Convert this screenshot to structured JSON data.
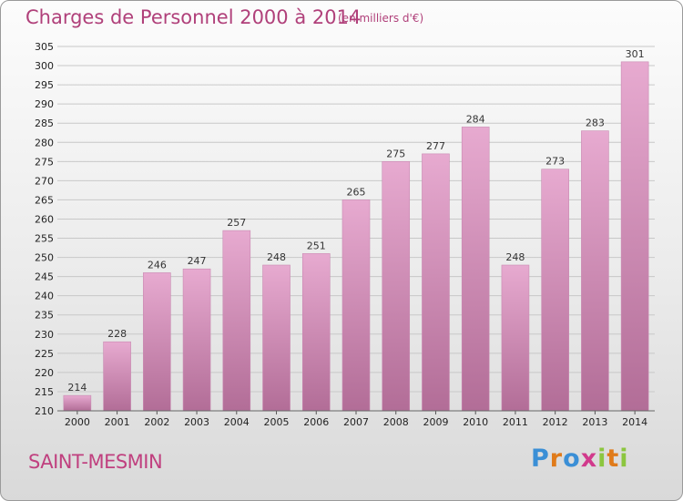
{
  "title": "Charges de Personnel 2000 à 2014",
  "subtitle": "(en milliers d'€)",
  "commune": "SAINT-MESMIN",
  "brand": {
    "letters": [
      "P",
      "r",
      "o",
      "x",
      "i",
      "t",
      "i"
    ]
  },
  "colors": {
    "bar_top": "#e7aad0",
    "bar_bottom": "#b26d97",
    "title": "#b0407a",
    "grid": "#c8c8c8"
  },
  "chart_data": {
    "type": "bar",
    "title": "Charges de Personnel 2000 à 2014",
    "subtitle": "(en milliers d'€)",
    "categories": [
      "2000",
      "2001",
      "2002",
      "2003",
      "2004",
      "2005",
      "2006",
      "2007",
      "2008",
      "2009",
      "2010",
      "2011",
      "2012",
      "2013",
      "2014"
    ],
    "values": [
      214,
      228,
      246,
      247,
      257,
      248,
      251,
      265,
      275,
      277,
      284,
      248,
      273,
      283,
      301
    ],
    "ylim": [
      210,
      305
    ],
    "yticks": [
      210,
      215,
      220,
      225,
      230,
      235,
      240,
      245,
      250,
      255,
      260,
      265,
      270,
      275,
      280,
      285,
      290,
      295,
      300,
      305
    ],
    "grid": true,
    "data_labels": true
  }
}
